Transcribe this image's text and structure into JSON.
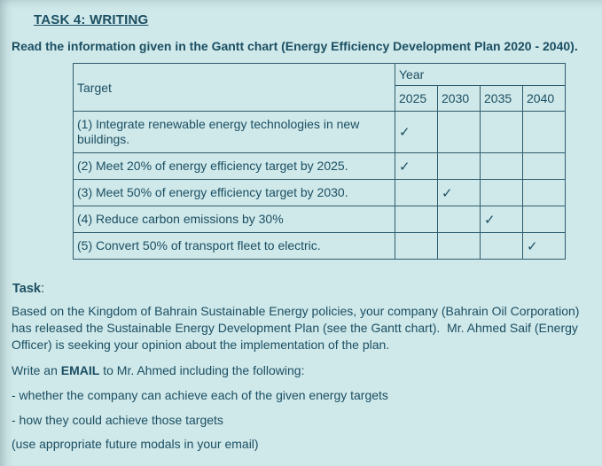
{
  "theme": {
    "bg_color": "#cfe8e9",
    "text_color": "#1b4f63",
    "border_color": "#2f5d6e",
    "check_color": "#1b4f63"
  },
  "header": {
    "title": "TASK 4: WRITING",
    "intro": "Read the information given in the Gantt chart (Energy Efficiency Development Plan 2020 - 2040)."
  },
  "gantt_table": {
    "target_header": "Target",
    "year_header": "Year",
    "years": [
      "2025",
      "2030",
      "2035",
      "2040"
    ],
    "check_glyph": "✓",
    "rows": [
      {
        "target": "(1) Integrate renewable energy technologies in new buildings.",
        "cells": [
          "✓",
          "",
          "",
          ""
        ]
      },
      {
        "target": "(2) Meet 20% of energy efficiency target by 2025.",
        "cells": [
          "✓",
          "",
          "",
          ""
        ]
      },
      {
        "target": "(3) Meet 50% of energy efficiency target by 2030.",
        "cells": [
          "",
          "✓",
          "",
          ""
        ]
      },
      {
        "target": "(4) Reduce carbon emissions by 30%",
        "cells": [
          "",
          "",
          "✓",
          ""
        ]
      },
      {
        "target": "(5) Convert 50% of transport fleet to electric.",
        "cells": [
          "",
          "",
          "",
          "✓"
        ]
      }
    ]
  },
  "task_section": {
    "label": "Task",
    "label_suffix": ":",
    "description": "Based on the Kingdom of Bahrain Sustainable Energy policies, your company (Bahrain Oil Corporation) has released the Sustainable Energy Development Plan (see the Gantt chart).  Mr. Ahmed Saif (Energy Officer) is seeking your opinion about the implementation of the plan.",
    "write_prefix": "Write an ",
    "write_emphasis": "EMAIL",
    "write_suffix": " to Mr. Ahmed including the following:",
    "bullets": [
      "- whether the company can achieve each of the given energy targets",
      "- how they could achieve those targets"
    ],
    "note": "(use appropriate future modals in your email)"
  }
}
